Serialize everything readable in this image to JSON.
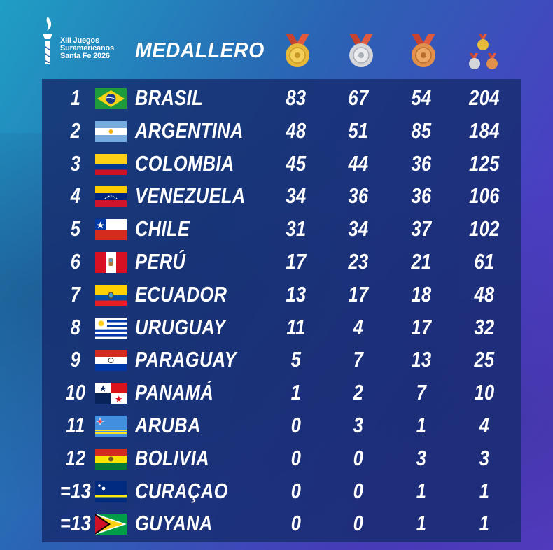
{
  "header": {
    "logo_lines": [
      "XIII Juegos",
      "Suramericanos",
      "Santa Fe 2026"
    ],
    "title": "MEDALLERO",
    "medal_icons": [
      "gold-medal-icon",
      "silver-medal-icon",
      "bronze-medal-icon",
      "total-medals-icon"
    ]
  },
  "colors": {
    "gold": "#e6b93b",
    "silver": "#d4d6da",
    "bronze": "#e0904a",
    "ribbon": "#c8432f",
    "panel": "#162c6e"
  },
  "rows": [
    {
      "rank": "1",
      "country": "BRASIL",
      "flag": "brazil",
      "gold": "83",
      "silver": "67",
      "bronze": "54",
      "total": "204"
    },
    {
      "rank": "2",
      "country": "ARGENTINA",
      "flag": "argentina",
      "gold": "48",
      "silver": "51",
      "bronze": "85",
      "total": "184"
    },
    {
      "rank": "3",
      "country": "COLOMBIA",
      "flag": "colombia",
      "gold": "45",
      "silver": "44",
      "bronze": "36",
      "total": "125"
    },
    {
      "rank": "4",
      "country": "VENEZUELA",
      "flag": "venezuela",
      "gold": "34",
      "silver": "36",
      "bronze": "36",
      "total": "106"
    },
    {
      "rank": "5",
      "country": "CHILE",
      "flag": "chile",
      "gold": "31",
      "silver": "34",
      "bronze": "37",
      "total": "102"
    },
    {
      "rank": "6",
      "country": "PERÚ",
      "flag": "peru",
      "gold": "17",
      "silver": "23",
      "bronze": "21",
      "total": "61"
    },
    {
      "rank": "7",
      "country": "ECUADOR",
      "flag": "ecuador",
      "gold": "13",
      "silver": "17",
      "bronze": "18",
      "total": "48"
    },
    {
      "rank": "8",
      "country": "URUGUAY",
      "flag": "uruguay",
      "gold": "11",
      "silver": "4",
      "bronze": "17",
      "total": "32"
    },
    {
      "rank": "9",
      "country": "PARAGUAY",
      "flag": "paraguay",
      "gold": "5",
      "silver": "7",
      "bronze": "13",
      "total": "25"
    },
    {
      "rank": "10",
      "country": "PANAMÁ",
      "flag": "panama",
      "gold": "1",
      "silver": "2",
      "bronze": "7",
      "total": "10"
    },
    {
      "rank": "11",
      "country": "ARUBA",
      "flag": "aruba",
      "gold": "0",
      "silver": "3",
      "bronze": "1",
      "total": "4"
    },
    {
      "rank": "12",
      "country": "BOLIVIA",
      "flag": "bolivia",
      "gold": "0",
      "silver": "0",
      "bronze": "3",
      "total": "3"
    },
    {
      "rank": "=13",
      "country": "CURAÇAO",
      "flag": "curacao",
      "gold": "0",
      "silver": "0",
      "bronze": "1",
      "total": "1"
    },
    {
      "rank": "=13",
      "country": "GUYANA",
      "flag": "guyana",
      "gold": "0",
      "silver": "0",
      "bronze": "1",
      "total": "1"
    }
  ]
}
